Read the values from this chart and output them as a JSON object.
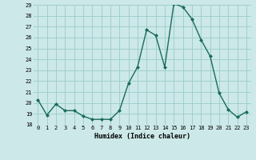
{
  "x": [
    0,
    1,
    2,
    3,
    4,
    5,
    6,
    7,
    8,
    9,
    10,
    11,
    12,
    13,
    14,
    15,
    16,
    17,
    18,
    19,
    20,
    21,
    22,
    23
  ],
  "y": [
    20.3,
    18.9,
    19.9,
    19.3,
    19.3,
    18.8,
    18.5,
    18.5,
    18.5,
    19.3,
    21.8,
    23.3,
    26.7,
    26.2,
    23.3,
    29.1,
    28.8,
    27.7,
    25.8,
    24.3,
    20.9,
    19.4,
    18.7,
    19.2
  ],
  "xlabel": "Humidex (Indice chaleur)",
  "ylim": [
    18,
    29
  ],
  "yticks": [
    18,
    19,
    20,
    21,
    22,
    23,
    24,
    25,
    26,
    27,
    28,
    29
  ],
  "xticks": [
    0,
    1,
    2,
    3,
    4,
    5,
    6,
    7,
    8,
    9,
    10,
    11,
    12,
    13,
    14,
    15,
    16,
    17,
    18,
    19,
    20,
    21,
    22,
    23
  ],
  "xlabel_labels": [
    "0",
    "1",
    "2",
    "3",
    "4",
    "5",
    "6",
    "7",
    "8",
    "9",
    "10",
    "11",
    "12",
    "13",
    "14",
    "15",
    "16",
    "17",
    "18",
    "19",
    "20",
    "21",
    "22",
    "23"
  ],
  "line_color": "#1a6b5a",
  "marker_color": "#1a6b5a",
  "bg_color": "#cce8e8",
  "grid_color": "#99cccc"
}
